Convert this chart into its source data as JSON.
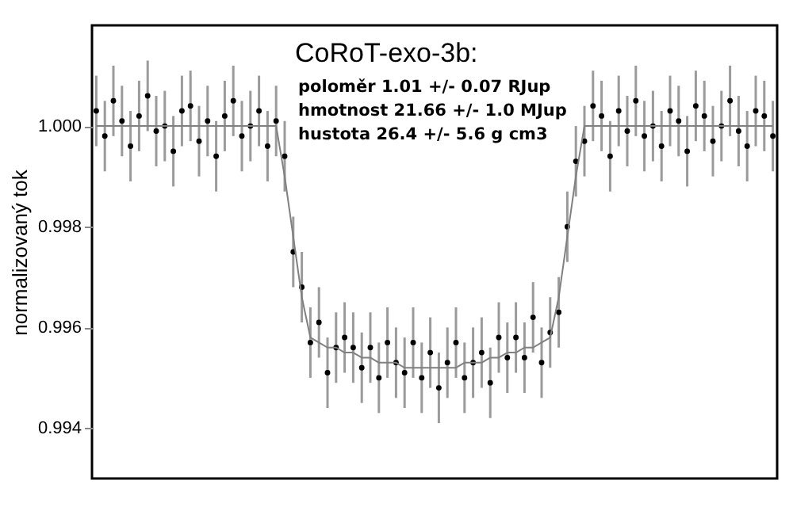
{
  "chart_data": {
    "type": "scatter",
    "title": "CoRoT-exo-3b:",
    "ylabel": "normalizovaný tok",
    "annotations": [
      "poloměr 1.01  +/- 0.07 RJup",
      "hmotnost 21.66 +/- 1.0 MJup",
      "hustota 26.4 +/- 5.6 g cm3"
    ],
    "categories": [
      null,
      null,
      null,
      null,
      null,
      null,
      null,
      null,
      null,
      null,
      null,
      null,
      null,
      null,
      null,
      null,
      null,
      null,
      null,
      null,
      null,
      null,
      null,
      null,
      null,
      null,
      null,
      null,
      null,
      null,
      null,
      null,
      null,
      null,
      null,
      null,
      null,
      null,
      null,
      null,
      null,
      null,
      null,
      null,
      null,
      null,
      null,
      null,
      null,
      null,
      null,
      null,
      null,
      null,
      null,
      null,
      null,
      null,
      null,
      null,
      null,
      null,
      null,
      null,
      null,
      null,
      null,
      null,
      null,
      null,
      null,
      null,
      null,
      null,
      null,
      null,
      null,
      null,
      null,
      null
    ],
    "series": [
      {
        "color": "#000000",
        "values": [
          1.0003,
          0.9998,
          1.0005,
          1.0001,
          0.9996,
          1.0002,
          1.0006,
          0.9999,
          1.0,
          0.9995,
          1.0003,
          1.0004,
          0.9997,
          1.0001,
          0.9994,
          1.0002,
          1.0005,
          0.9998,
          1.0,
          1.0003,
          0.9996,
          1.0001,
          0.9994,
          0.9975,
          0.9968,
          0.9957,
          0.9961,
          0.9951,
          0.9956,
          0.9958,
          0.9956,
          0.9952,
          0.9956,
          0.995,
          0.9957,
          0.9953,
          0.9951,
          0.9957,
          0.995,
          0.9955,
          0.9948,
          0.9953,
          0.9957,
          0.995,
          0.9953,
          0.9955,
          0.9949,
          0.9958,
          0.9954,
          0.9958,
          0.9954,
          0.9962,
          0.9953,
          0.9959,
          0.9963,
          0.998,
          0.9993,
          0.9997,
          1.0004,
          1.0002,
          0.9994,
          1.0003,
          0.9999,
          1.0005,
          0.9998,
          1.0,
          0.9996,
          1.0003,
          1.0001,
          0.9995,
          1.0004,
          1.0002,
          0.9997,
          1.0,
          1.0005,
          0.9999,
          0.9996,
          1.0003,
          1.0002,
          0.9998
        ],
        "errors": [
          0.0007,
          0.0007,
          0.0007,
          0.0007,
          0.0007,
          0.0007,
          0.0007,
          0.0007,
          0.0007,
          0.0007,
          0.0007,
          0.0007,
          0.0007,
          0.0007,
          0.0007,
          0.0007,
          0.0007,
          0.0007,
          0.0007,
          0.0007,
          0.0007,
          0.0007,
          0.0007,
          0.0007,
          0.0007,
          0.0007,
          0.0007,
          0.0007,
          0.0007,
          0.0007,
          0.0007,
          0.0007,
          0.0007,
          0.0007,
          0.0007,
          0.0007,
          0.0007,
          0.0007,
          0.0007,
          0.0007,
          0.0007,
          0.0007,
          0.0007,
          0.0007,
          0.0007,
          0.0007,
          0.0007,
          0.0007,
          0.0007,
          0.0007,
          0.0007,
          0.0007,
          0.0007,
          0.0007,
          0.0007,
          0.0007,
          0.0007,
          0.0007,
          0.0007,
          0.0007,
          0.0007,
          0.0007,
          0.0007,
          0.0007,
          0.0007,
          0.0007,
          0.0007,
          0.0007,
          0.0007,
          0.0007,
          0.0007,
          0.0007,
          0.0007,
          0.0007,
          0.0007,
          0.0007,
          0.0007,
          0.0007,
          0.0007,
          0.0007
        ]
      },
      {
        "type": "line",
        "marker": "none",
        "color": "#808080",
        "values": [
          1.0,
          1.0,
          1.0,
          1.0,
          1.0,
          1.0,
          1.0,
          1.0,
          1.0,
          1.0,
          1.0,
          1.0,
          1.0,
          1.0,
          1.0,
          1.0,
          1.0,
          1.0,
          1.0,
          1.0,
          1.0,
          1.0,
          0.999,
          0.9978,
          0.9966,
          0.9958,
          0.9957,
          0.9956,
          0.9956,
          0.9955,
          0.9955,
          0.9954,
          0.9954,
          0.9953,
          0.9953,
          0.9953,
          0.9952,
          0.9952,
          0.9952,
          0.9952,
          0.9952,
          0.9952,
          0.9952,
          0.9953,
          0.9953,
          0.9953,
          0.9954,
          0.9954,
          0.9955,
          0.9955,
          0.9956,
          0.9956,
          0.9957,
          0.9958,
          0.9966,
          0.9978,
          0.999,
          1.0,
          1.0,
          1.0,
          1.0,
          1.0,
          1.0,
          1.0,
          1.0,
          1.0,
          1.0,
          1.0,
          1.0,
          1.0,
          1.0,
          1.0,
          1.0,
          1.0,
          1.0,
          1.0,
          1.0,
          1.0,
          1.0,
          1.0
        ]
      }
    ],
    "ylim": [
      0.993,
      1.002
    ],
    "yticks": [
      0.994,
      0.996,
      0.998,
      {
        "value": 1.0,
        "label": "1.000"
      }
    ],
    "grid": false,
    "marker": "circle",
    "tick_labels": "y"
  }
}
